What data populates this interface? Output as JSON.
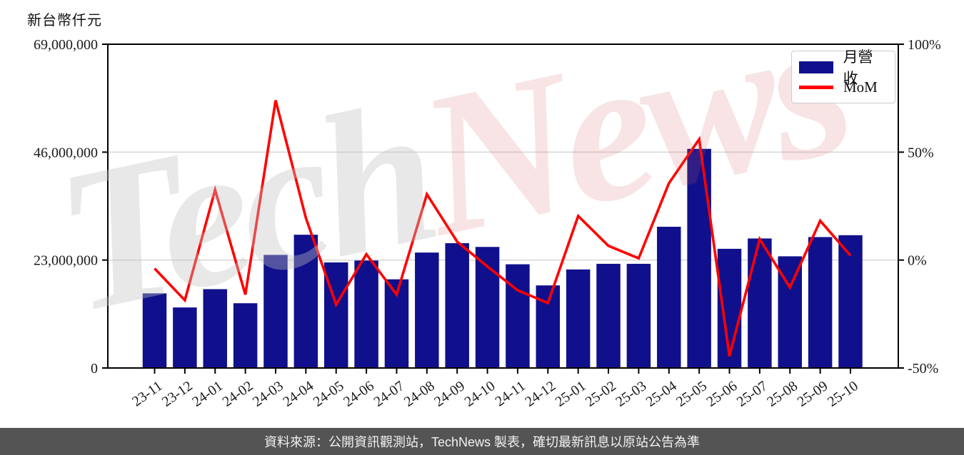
{
  "header": {
    "y_axis_title": "新台幣仟元"
  },
  "legend": {
    "revenue_label": "月營收",
    "mom_label": "MoM"
  },
  "watermark": {
    "part1": "Tech",
    "part2": "News"
  },
  "footer": {
    "source_text": "資料來源：公開資訊觀測站，TechNews 製表，確切最新訊息以原站公告為準"
  },
  "colors": {
    "bar": "#10108c",
    "line": "#ff0000",
    "grid": "#d9d9d9",
    "axis": "#000000",
    "tick_text": "#1a1a1a",
    "footer_bg": "#545454",
    "footer_text": "#f2f2f2",
    "watermark_gray": "rgba(195,195,195,0.38)",
    "watermark_pink": "rgba(213,92,92,0.17)"
  },
  "chart_data": {
    "type": "bar",
    "title": "",
    "categories": [
      "23-11",
      "23-12",
      "24-01",
      "24-02",
      "24-03",
      "24-04",
      "24-05",
      "24-06",
      "24-07",
      "24-08",
      "24-09",
      "24-10",
      "24-11",
      "24-12",
      "25-01",
      "25-02",
      "25-03",
      "25-04",
      "25-05",
      "25-06",
      "25-07",
      "25-08",
      "25-09",
      "25-10"
    ],
    "series": [
      {
        "name": "月營收",
        "type": "bar",
        "axis": "left",
        "values": [
          15900000,
          12900000,
          16800000,
          13800000,
          24100000,
          28400000,
          22500000,
          22900000,
          18900000,
          24600000,
          26600000,
          25800000,
          22100000,
          17600000,
          21000000,
          22200000,
          22200000,
          30100000,
          46700000,
          25400000,
          27600000,
          23800000,
          27900000,
          28300000
        ]
      },
      {
        "name": "MoM",
        "type": "line",
        "axis": "right",
        "values": [
          -3.9,
          -18.6,
          32.5,
          -16.0,
          74.0,
          19.5,
          -20.6,
          2.7,
          -16.0,
          30.5,
          8.5,
          -3.0,
          -14.0,
          -19.9,
          20.4,
          6.6,
          0.8,
          35.6,
          56.0,
          -44.5,
          9.7,
          -12.7,
          18.2,
          2.1
        ]
      }
    ],
    "left_axis": {
      "title": "新台幣仟元",
      "unit": "新台幣仟元",
      "tick_labels": [
        "0",
        "23,000,000",
        "46,000,000",
        "69,000,000"
      ],
      "tick_values": [
        0,
        23000000,
        46000000,
        69000000
      ],
      "range": [
        0,
        69000000
      ]
    },
    "right_axis": {
      "unit": "%",
      "tick_labels": [
        "-50%",
        "0%",
        "50%",
        "100%"
      ],
      "tick_values": [
        -50,
        0,
        50,
        100
      ],
      "range": [
        -50,
        100
      ]
    },
    "grid": "horizontal gridlines at 23,000,000 (0%) and 46,000,000 (50%)",
    "legend_position": "top-right",
    "x_tick_rotation_deg": -35
  }
}
